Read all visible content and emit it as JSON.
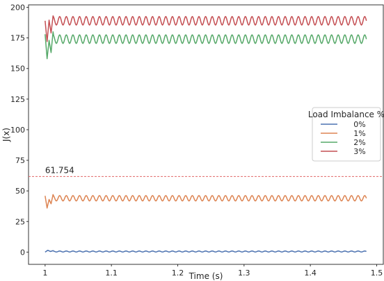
{
  "chart_data": {
    "type": "line",
    "title": "",
    "xlabel": "Time (s)",
    "ylabel": "J(x)",
    "xlim": [
      0.975,
      1.51
    ],
    "ylim": [
      -10,
      202
    ],
    "xticks": [
      1,
      1.1,
      1.2,
      1.3,
      1.4,
      1.5
    ],
    "xtick_labels": [
      "1",
      "1.1",
      "1.2",
      "1.3",
      "1.4",
      "1.5"
    ],
    "yticks": [
      0,
      25,
      50,
      75,
      100,
      125,
      150,
      175,
      200
    ],
    "ytick_labels": [
      "0",
      "25",
      "50",
      "75",
      "100",
      "125",
      "150",
      "175",
      "200"
    ],
    "grid": false,
    "legend": {
      "title": "Load Imbalance %",
      "placement": "center-right"
    },
    "reference_line": {
      "y": 61.754,
      "label": "61.754",
      "color": "#e06666",
      "style": "dashed"
    },
    "x_start": 1.0,
    "x_end": 1.485,
    "oscillation_period_s": 0.01,
    "series": [
      {
        "name": "0%",
        "color": "#4c72b0",
        "mean": 0.5,
        "amplitude": 0.4,
        "initial_values": [
          0.0,
          1.5,
          0.5,
          1.2
        ]
      },
      {
        "name": "1%",
        "color": "#dd8452",
        "mean": 44.0,
        "amplitude": 2.2,
        "initial_values": [
          46.0,
          36.0,
          43.0,
          39.5,
          47.0
        ]
      },
      {
        "name": "2%",
        "color": "#55a868",
        "mean": 174.0,
        "amplitude": 3.5,
        "initial_values": [
          178.0,
          158.0,
          173.0,
          163.0,
          180.0
        ]
      },
      {
        "name": "3%",
        "color": "#c44e52",
        "mean": 189.0,
        "amplitude": 3.5,
        "initial_values": [
          189.0,
          172.0,
          189.5,
          179.0,
          193.0
        ]
      }
    ]
  }
}
